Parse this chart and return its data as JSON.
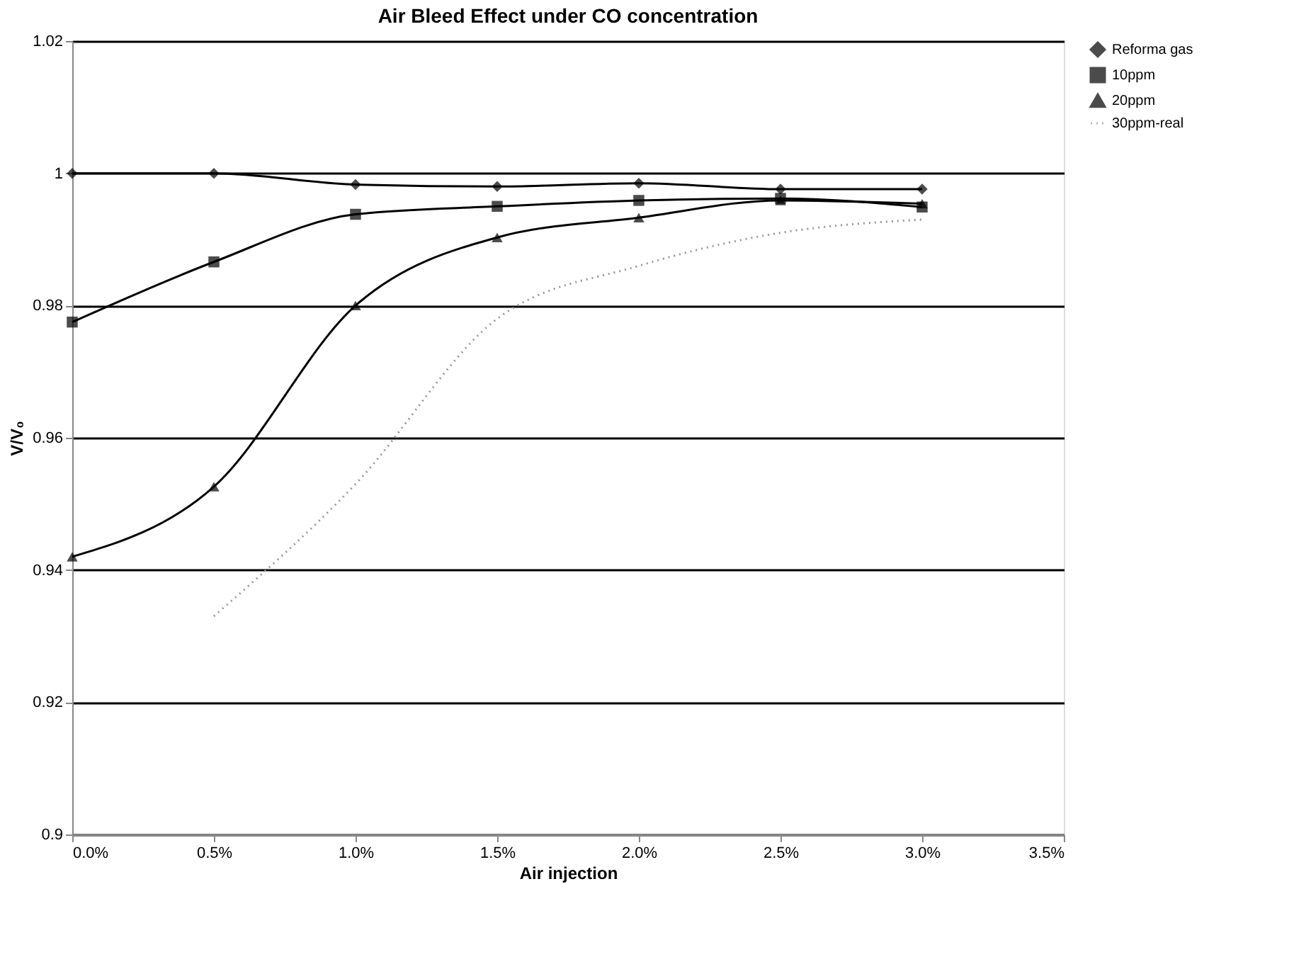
{
  "chart_data": {
    "type": "line",
    "title": "Air Bleed Effect under CO concentration",
    "xlabel": "Air injection",
    "ylabel": "V/V₀",
    "xlim": [
      0,
      3.5
    ],
    "xticks": [
      {
        "value": 0,
        "label": "0.0%"
      },
      {
        "value": 0.5,
        "label": "0.5%"
      },
      {
        "value": 1,
        "label": "1.0%"
      },
      {
        "value": 1.5,
        "label": "1.5%"
      },
      {
        "value": 2,
        "label": "2.0%"
      },
      {
        "value": 2.5,
        "label": "2.5%"
      },
      {
        "value": 3,
        "label": "3.0%"
      },
      {
        "value": 3.5,
        "label": "3.5%"
      }
    ],
    "ylim": [
      0.9,
      1.02
    ],
    "yticks": [
      0.9,
      0.92,
      0.94,
      0.96,
      0.98,
      1,
      1.02
    ],
    "grid": "y",
    "legend": "right",
    "series": [
      {
        "name": "Reforma gas",
        "color": "#000000",
        "marker": "diamond",
        "line_style": "solid",
        "x": [
          0,
          0.5,
          1,
          1.5,
          2,
          2.5,
          3
        ],
        "values": [
          1.0,
          1.0,
          0.9983,
          0.998,
          0.9985,
          0.9976,
          0.9976
        ]
      },
      {
        "name": "10ppm",
        "color": "#000000",
        "marker": "square",
        "line_style": "solid",
        "x": [
          0,
          0.5,
          1,
          1.5,
          2,
          2.5,
          3
        ],
        "values": [
          0.9775,
          0.9866,
          0.9938,
          0.995,
          0.9959,
          0.9962,
          0.9949
        ]
      },
      {
        "name": "20ppm",
        "color": "#000000",
        "marker": "triangle",
        "line_style": "solid",
        "x": [
          0,
          0.5,
          1,
          1.5,
          2,
          2.5,
          3
        ],
        "values": [
          0.942,
          0.9526,
          0.98,
          0.9903,
          0.9933,
          0.9959,
          0.9954
        ]
      },
      {
        "name": "30ppm-real",
        "color": "#999999",
        "marker": "none",
        "line_style": "dotted",
        "x": [
          0.5,
          1,
          1.5,
          2,
          2.5,
          3
        ],
        "values": [
          0.933,
          0.953,
          0.978,
          0.986,
          0.991,
          0.993
        ]
      }
    ]
  }
}
